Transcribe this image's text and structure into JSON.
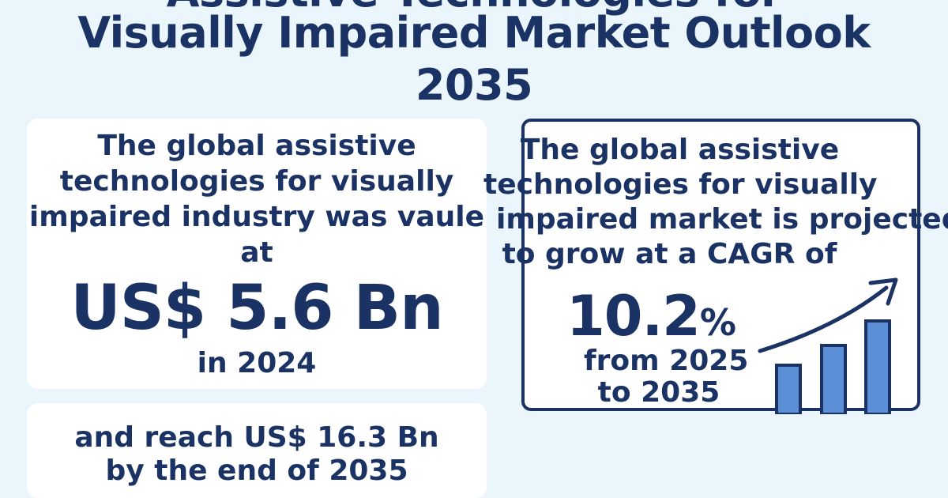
{
  "title": {
    "line0": "Assistive Technologies for",
    "line1": "Visually Impaired Market Outlook",
    "line2": "2035"
  },
  "card_left": {
    "line1": "The global assistive",
    "line2": "technologies for visually",
    "line3": "impaired industry was vaule",
    "line4": "at",
    "value": "US$ 5.6 Bn",
    "year": "in 2024"
  },
  "card_right": {
    "line1": "The global assistive",
    "line2": "technologies for visually",
    "line3": "impaired market is projected",
    "line4": "to grow at a CAGR of",
    "cagr_number": "10.2",
    "cagr_symbol": "%",
    "period_line1": "from 2025",
    "period_line2": "to 2035"
  },
  "card_bottom": {
    "line1": "and reach US$ 16.3 Bn",
    "line2": "by the end of 2035"
  },
  "colors": {
    "background": "#eaf5fc",
    "navy": "#1b3264",
    "bar_fill": "#5b8fd6",
    "card": "#ffffff"
  },
  "icons": [
    "growth-bar-chart-icon",
    "trend-arrow-icon"
  ]
}
